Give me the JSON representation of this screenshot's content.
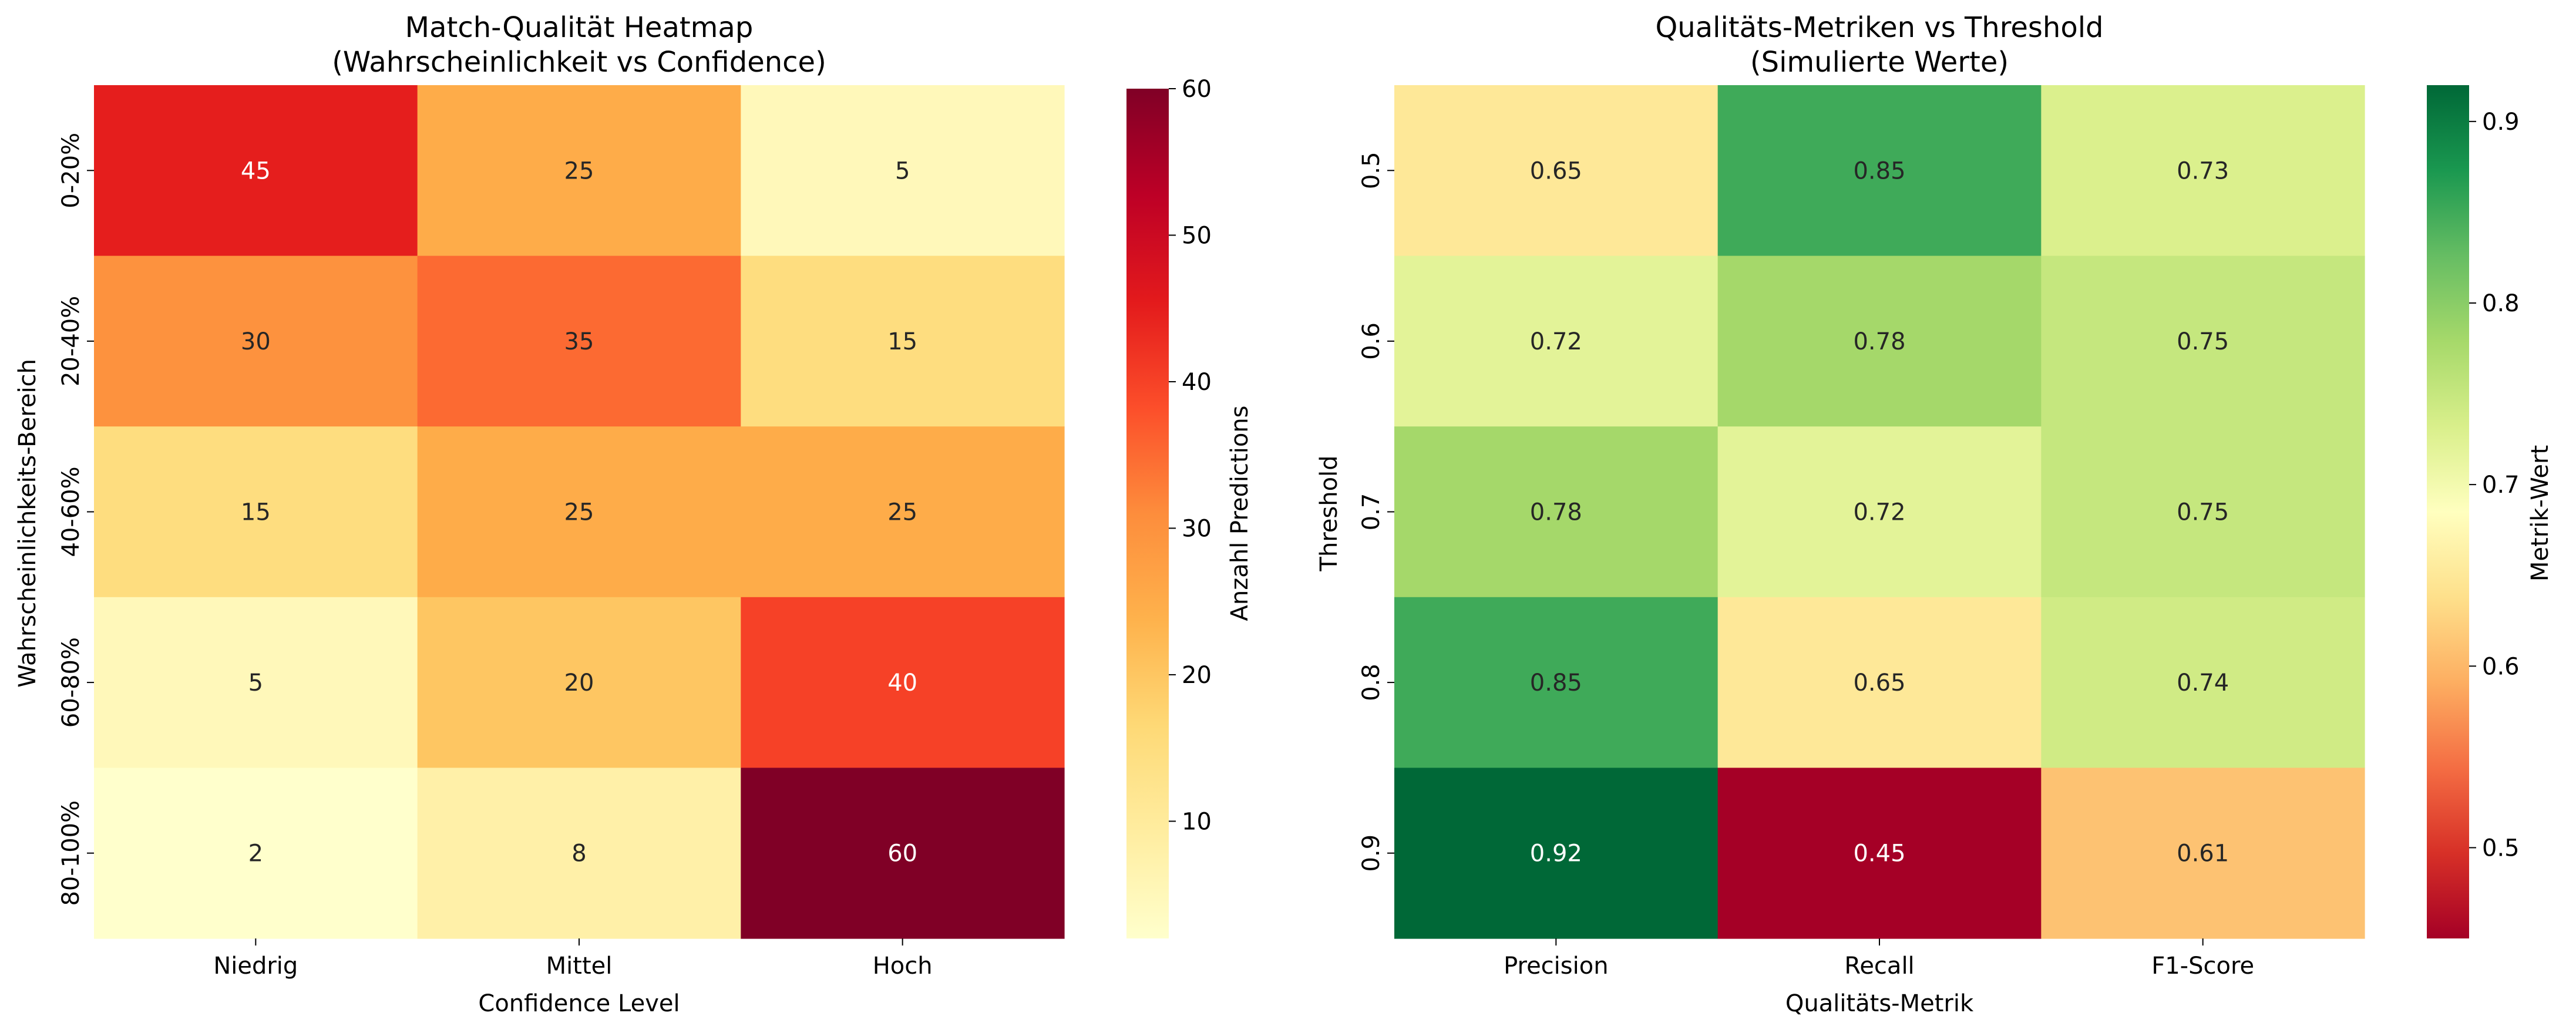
{
  "chart_data": [
    {
      "type": "heatmap",
      "title": "Match-Qualität Heatmap",
      "subtitle": "(Wahrscheinlichkeit vs Confidence)",
      "xlabel": "Confidence Level",
      "ylabel": "Wahrscheinlichkeits-Bereich",
      "x_categories": [
        "Niedrig",
        "Mittel",
        "Hoch"
      ],
      "y_categories": [
        "0-20%",
        "20-40%",
        "40-60%",
        "60-80%",
        "80-100%"
      ],
      "values": [
        [
          45,
          25,
          5
        ],
        [
          30,
          35,
          15
        ],
        [
          15,
          25,
          25
        ],
        [
          5,
          20,
          40
        ],
        [
          2,
          8,
          60
        ]
      ],
      "value_labels": [
        [
          "45",
          "25",
          "5"
        ],
        [
          "30",
          "35",
          "15"
        ],
        [
          "15",
          "25",
          "25"
        ],
        [
          "5",
          "20",
          "40"
        ],
        [
          "2",
          "8",
          "60"
        ]
      ],
      "colormap": "YlOrRd",
      "vmin": 2,
      "vmax": 60,
      "colorbar": {
        "label": "Anzahl Predictions",
        "ticks": [
          10,
          20,
          30,
          40,
          50,
          60
        ],
        "tick_labels": [
          "10",
          "20",
          "30",
          "40",
          "50",
          "60"
        ]
      }
    },
    {
      "type": "heatmap",
      "title": "Qualitäts-Metriken vs Threshold",
      "subtitle": "(Simulierte Werte)",
      "xlabel": "Qualitäts-Metrik",
      "ylabel": "Threshold",
      "x_categories": [
        "Precision",
        "Recall",
        "F1-Score"
      ],
      "y_categories": [
        "0.5",
        "0.6",
        "0.7",
        "0.8",
        "0.9"
      ],
      "values": [
        [
          0.65,
          0.85,
          0.73
        ],
        [
          0.72,
          0.78,
          0.75
        ],
        [
          0.78,
          0.72,
          0.75
        ],
        [
          0.85,
          0.65,
          0.74
        ],
        [
          0.92,
          0.45,
          0.61
        ]
      ],
      "value_labels": [
        [
          "0.65",
          "0.85",
          "0.73"
        ],
        [
          "0.72",
          "0.78",
          "0.75"
        ],
        [
          "0.78",
          "0.72",
          "0.75"
        ],
        [
          "0.85",
          "0.65",
          "0.74"
        ],
        [
          "0.92",
          "0.45",
          "0.61"
        ]
      ],
      "colormap": "RdYlGn",
      "vmin": 0.45,
      "vmax": 0.92,
      "colorbar": {
        "label": "Metrik-Wert",
        "ticks": [
          0.5,
          0.6,
          0.7,
          0.8,
          0.9
        ],
        "tick_labels": [
          "0.5",
          "0.6",
          "0.7",
          "0.8",
          "0.9"
        ]
      }
    }
  ]
}
